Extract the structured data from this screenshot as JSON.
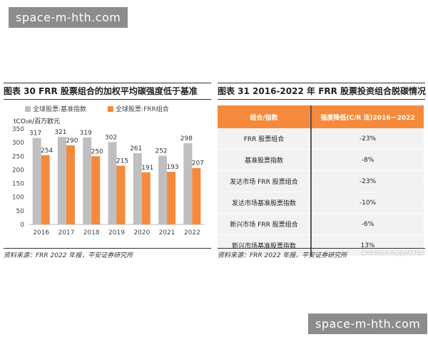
{
  "watermarks": {
    "top": "space-m-hth.com",
    "bottom": "space-m-hth.com",
    "faint": "CHENGXIAOJIAO760"
  },
  "left": {
    "title": "图表 30   FRR 股票组合的加权平均碳强度低于基准",
    "source": "资料来源：FRR 2022 年报，平安证券研究所"
  },
  "right": {
    "title": "图表 31   2016-2022 年 FRR 股票投资组合脱碳情况",
    "headers": [
      "组合/指数",
      "强度降低(C/R 法)2016－2022"
    ],
    "rows": [
      [
        "FRR 股票组合",
        "-23%"
      ],
      [
        "基准股票指数",
        "-8%"
      ],
      [
        "发达市场 FRR 股票组合",
        "-23%"
      ],
      [
        "发达市场基准股票指数",
        "-10%"
      ],
      [
        "新兴市场 FRR 股票组合",
        "-6%"
      ],
      [
        "新兴市场基准股票指数",
        "13%"
      ]
    ],
    "source": "资料来源：FRR 2022 年报，平安证券研究所"
  },
  "chart_data": {
    "type": "bar",
    "ylabel": "tCO₂e/百万欧元",
    "categories": [
      "2016",
      "2017",
      "2018",
      "2019",
      "2020",
      "2021",
      "2022"
    ],
    "series": [
      {
        "name": "全球股票:基准指数",
        "color": "#bfbfbf",
        "values": [
          317,
          321,
          319,
          302,
          261,
          252,
          298
        ]
      },
      {
        "name": "全球股票:FRR组合",
        "color": "#f58a3c",
        "values": [
          254,
          290,
          250,
          215,
          191,
          193,
          207
        ]
      }
    ],
    "ylim": [
      0,
      350
    ],
    "yticks": [
      0,
      50,
      100,
      150,
      200,
      250,
      300,
      350
    ],
    "grid": false,
    "legend": "top"
  }
}
